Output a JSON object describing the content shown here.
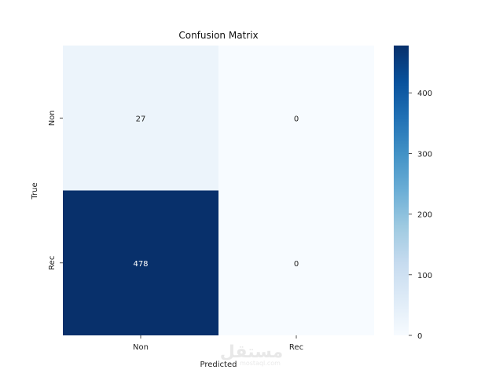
{
  "chart_data": {
    "type": "heatmap",
    "title": "Confusion Matrix",
    "xlabel": "Predicted",
    "ylabel": "True",
    "x_categories": [
      "Non",
      "Rec"
    ],
    "y_categories": [
      "Non",
      "Rec"
    ],
    "values": [
      [
        27,
        0
      ],
      [
        478,
        0
      ]
    ],
    "colorbar": {
      "min": 0,
      "max": 478,
      "ticks": [
        0,
        100,
        200,
        300,
        400
      ],
      "tick_labels": [
        "0",
        "100",
        "200",
        "300",
        "400"
      ]
    },
    "colormap": "Blues",
    "colors": {
      "low": "#f7fbff",
      "high": "#08306b"
    }
  },
  "watermark": {
    "text": "مستقل",
    "subtext": "mostaql.com"
  }
}
